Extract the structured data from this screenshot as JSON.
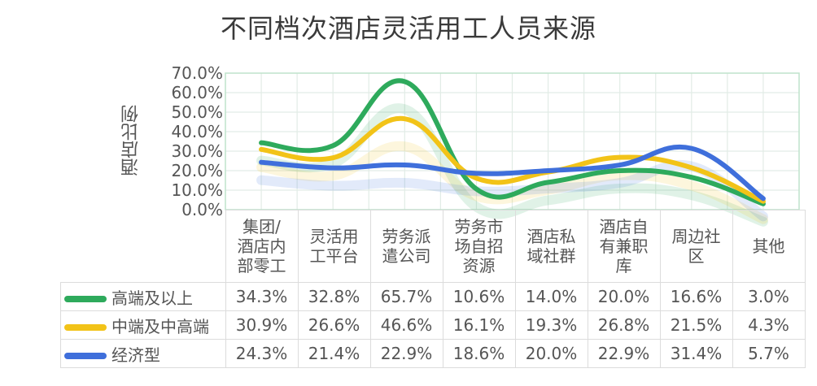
{
  "chart_data": {
    "type": "line",
    "title": "不同档次酒店灵活用工人员来源",
    "xlabel": "",
    "ylabel": "酒店比例",
    "ylim": [
      0,
      70
    ],
    "yticks": [
      "70.0%",
      "60.0%",
      "50.0%",
      "40.0%",
      "30.0%",
      "20.0%",
      "10.0%",
      "0.0%"
    ],
    "grid": true,
    "legend_position": "data-table-left",
    "smooth": true,
    "categories": [
      "集团/酒店内部零工",
      "灵活用工平台",
      "劳务派遣公司",
      "劳务市场自招资源",
      "酒店私域社群",
      "酒店自有兼职库",
      "周边社区",
      "其他"
    ],
    "series": [
      {
        "name": "高端及以上",
        "color": "#2EAA5C",
        "values": [
          34.3,
          32.8,
          65.7,
          10.6,
          14.0,
          20.0,
          16.6,
          3.0
        ],
        "labels": [
          "34.3%",
          "32.8%",
          "65.7%",
          "10.6%",
          "14.0%",
          "20.0%",
          "16.6%",
          "3.0%"
        ]
      },
      {
        "name": "中端及中高端",
        "color": "#F2C318",
        "values": [
          30.9,
          26.6,
          46.6,
          16.1,
          19.3,
          26.8,
          21.5,
          4.3
        ],
        "labels": [
          "30.9%",
          "26.6%",
          "46.6%",
          "16.1%",
          "19.3%",
          "26.8%",
          "21.5%",
          "4.3%"
        ]
      },
      {
        "name": "经济型",
        "color": "#3F6FDB",
        "values": [
          24.3,
          21.4,
          22.9,
          18.6,
          20.0,
          22.9,
          31.4,
          5.7
        ],
        "labels": [
          "24.3%",
          "21.4%",
          "22.9%",
          "18.6%",
          "20.0%",
          "22.9%",
          "31.4%",
          "5.7%"
        ]
      }
    ]
  },
  "table_headers": [
    "集团/酒店内部零工",
    "灵活用工平台",
    "劳务派遣公司",
    "劳务市场自招资源",
    "酒店私域社群",
    "酒店自有兼职库",
    "周边社区",
    "其他"
  ]
}
